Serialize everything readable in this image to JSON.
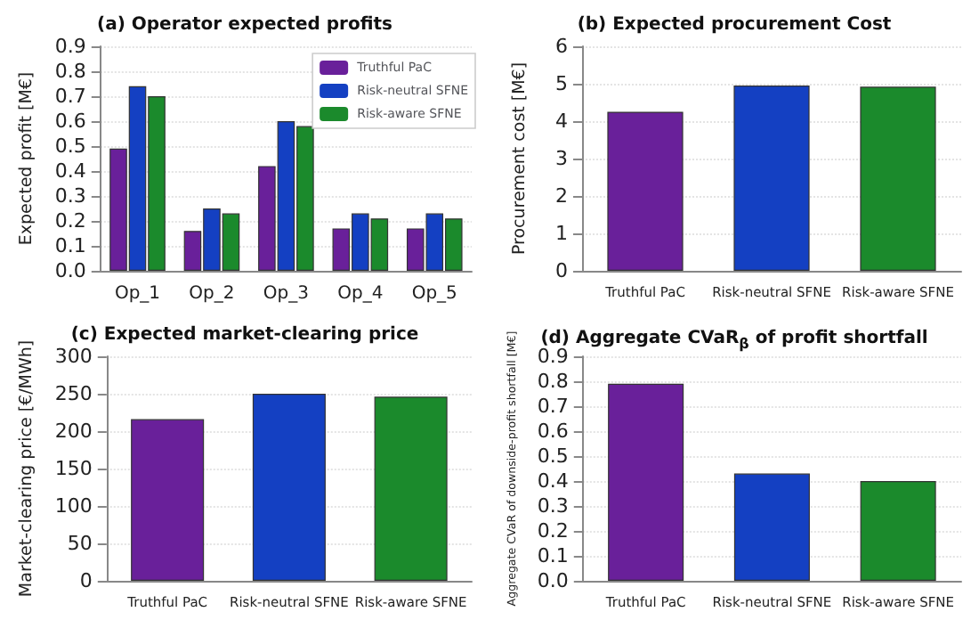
{
  "chart_data": [
    {
      "type": "bar",
      "title": "(a) Operator expected profits",
      "ylabel": "Expected profit [M€]",
      "categories": [
        "Op_1",
        "Op_2",
        "Op_3",
        "Op_4",
        "Op_5"
      ],
      "series": [
        {
          "name": "Truthful PaC",
          "color": "#69209a",
          "values": [
            0.49,
            0.16,
            0.42,
            0.17,
            0.17
          ]
        },
        {
          "name": "Risk-neutral SFNE",
          "color": "#1440c2",
          "values": [
            0.74,
            0.25,
            0.6,
            0.23,
            0.23
          ]
        },
        {
          "name": "Risk-aware SFNE",
          "color": "#1b8a2c",
          "values": [
            0.7,
            0.23,
            0.58,
            0.21,
            0.21
          ]
        }
      ],
      "ylim": [
        0,
        0.9
      ],
      "yticks": [
        {
          "value": 0,
          "label": "0.0"
        },
        0.1,
        0.2,
        0.3,
        0.4,
        0.5,
        0.6,
        0.7,
        0.8,
        0.9
      ],
      "grid": "y",
      "legend": "top right"
    },
    {
      "type": "bar",
      "title": "(b) Expected procurement Cost",
      "ylabel": "Procurement cost [M€]",
      "categories": [
        "Truthful PaC",
        "Risk-neutral SFNE",
        "Risk-aware SFNE"
      ],
      "values": [
        4.25,
        4.95,
        4.92
      ],
      "colors": [
        "#69209a",
        "#1440c2",
        "#1b8a2c"
      ],
      "ylim": [
        0,
        6
      ],
      "yticks": [
        0,
        1,
        2,
        3,
        4,
        5,
        6
      ],
      "grid": "y"
    },
    {
      "type": "bar",
      "title": "(c) Expected market-clearing price",
      "ylabel": "Market-clearing price [€/MWh]",
      "categories": [
        "Truthful PaC",
        "Risk-neutral SFNE",
        "Risk-aware SFNE"
      ],
      "values": [
        216,
        250,
        246
      ],
      "colors": [
        "#69209a",
        "#1440c2",
        "#1b8a2c"
      ],
      "ylim": [
        0,
        300
      ],
      "yticks": [
        0,
        50,
        100,
        150,
        200,
        250,
        300
      ],
      "grid": "y"
    },
    {
      "type": "bar",
      "title": "(d) Aggregate CVaR$_{β}$ of profit shortfall",
      "ylabel": "Aggregate CVaR of downside-profit shortfall [M€]",
      "categories": [
        "Truthful PaC",
        "Risk-neutral SFNE",
        "Risk-aware SFNE"
      ],
      "values": [
        0.79,
        0.43,
        0.4
      ],
      "colors": [
        "#69209a",
        "#1440c2",
        "#1b8a2c"
      ],
      "ylim": [
        0,
        0.9
      ],
      "yticks": [
        {
          "value": 0,
          "label": "0.0"
        },
        0.1,
        0.2,
        0.3,
        0.4,
        0.5,
        0.6,
        0.7,
        0.8,
        0.9
      ],
      "grid": "y"
    }
  ]
}
